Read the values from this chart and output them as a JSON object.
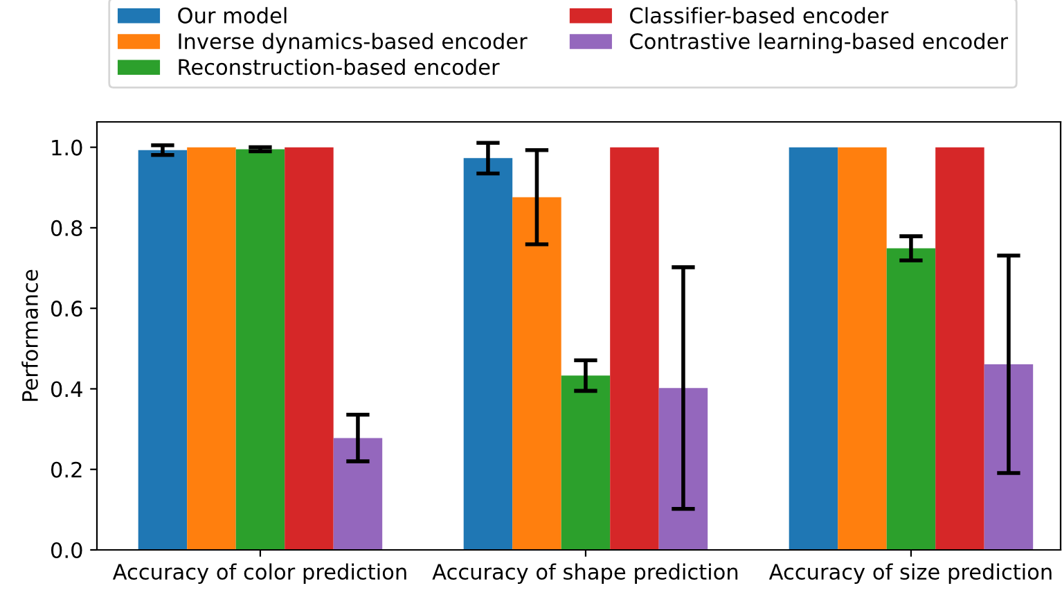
{
  "chart_data": {
    "type": "bar",
    "ylabel": "Performance",
    "categories": [
      "Accuracy of color prediction",
      "Accuracy of shape prediction",
      "Accuracy of size prediction"
    ],
    "series": [
      {
        "name": "Our model",
        "color": "#1f77b4",
        "values": [
          0.993,
          0.973,
          1.0
        ],
        "errors": [
          0.012,
          0.038,
          null
        ]
      },
      {
        "name": "Inverse dynamics-based encoder",
        "color": "#ff7f0e",
        "values": [
          1.0,
          0.876,
          1.0
        ],
        "errors": [
          null,
          0.117,
          null
        ]
      },
      {
        "name": "Reconstruction-based encoder",
        "color": "#2ca02c",
        "values": [
          0.995,
          0.433,
          0.749
        ],
        "errors": [
          0.005,
          0.038,
          0.03
        ]
      },
      {
        "name": "Classifier-based encoder",
        "color": "#d62728",
        "values": [
          1.0,
          1.0,
          1.0
        ],
        "errors": [
          null,
          null,
          null
        ]
      },
      {
        "name": "Contrastive learning-based encoder",
        "color": "#9467bd",
        "values": [
          0.278,
          0.402,
          0.461
        ],
        "errors": [
          0.058,
          0.3,
          0.27
        ]
      }
    ],
    "ylim": [
      0,
      1.063
    ],
    "yticks": [
      {
        "value": 0,
        "label": "0.0"
      },
      {
        "value": 0.2,
        "label": "0.2"
      },
      {
        "value": 0.4,
        "label": "0.4"
      },
      {
        "value": 0.6,
        "label": "0.6"
      },
      {
        "value": 0.8,
        "label": "0.8"
      },
      {
        "value": 1,
        "label": "1.0"
      }
    ],
    "legend": "top",
    "grid": false
  }
}
